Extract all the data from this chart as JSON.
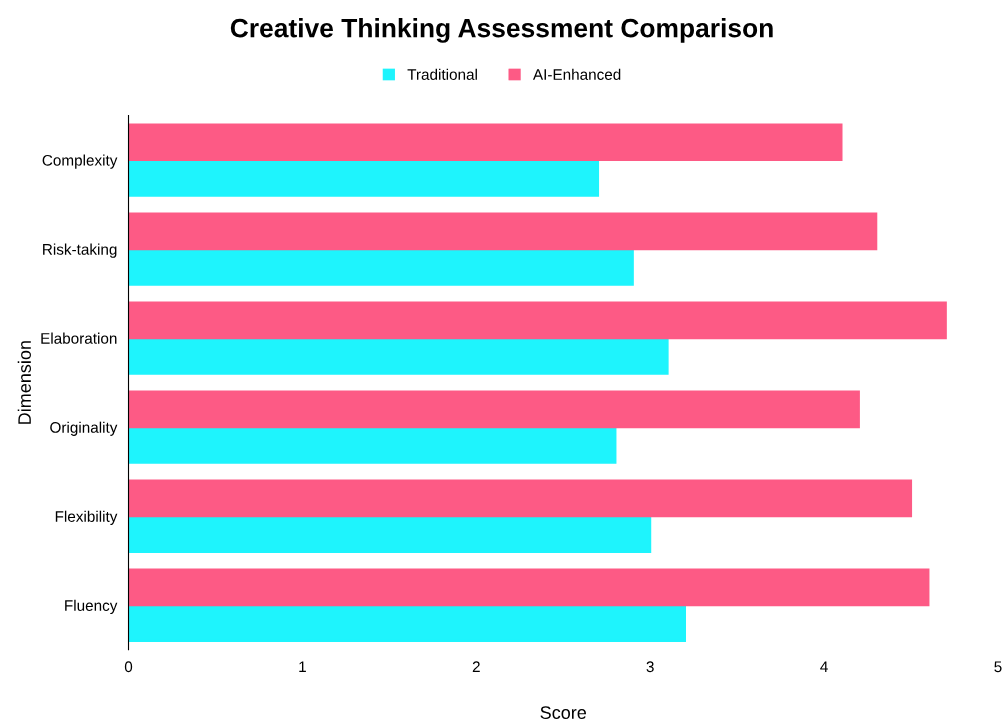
{
  "chart_data": {
    "type": "bar",
    "orientation": "horizontal",
    "title": "Creative Thinking Assessment Comparison",
    "xlabel": "Score",
    "ylabel": "Dimension",
    "categories": [
      "Complexity",
      "Risk-taking",
      "Elaboration",
      "Originality",
      "Flexibility",
      "Fluency"
    ],
    "series": [
      {
        "name": "Traditional",
        "color": "#1ef4fd",
        "values": [
          2.7,
          2.9,
          3.1,
          2.8,
          3.0,
          3.2
        ]
      },
      {
        "name": "AI-Enhanced",
        "color": "#fd5a85",
        "values": [
          4.1,
          4.3,
          4.7,
          4.2,
          4.5,
          4.6
        ]
      }
    ],
    "xlim": [
      0,
      5
    ],
    "xticks": [
      0,
      1,
      2,
      3,
      4,
      5
    ],
    "grid": false,
    "legend": "top"
  }
}
